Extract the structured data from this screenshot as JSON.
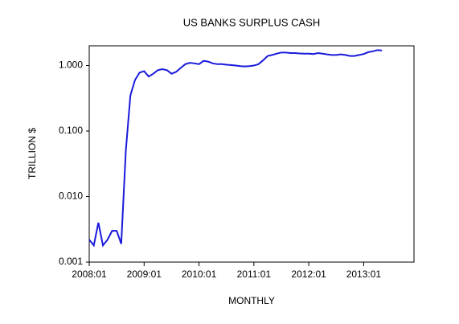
{
  "chart_data": {
    "type": "line",
    "title": "US BANKS SURPLUS CASH",
    "x_label": "MONTHLY",
    "y_label": "TRILLION $",
    "log_scale": true,
    "x": [
      "2008:01",
      "2008:02",
      "2008:03",
      "2008:04",
      "2008:05",
      "2008:06",
      "2008:07",
      "2008:08",
      "2008:09",
      "2008:10",
      "2008:11",
      "2008:12",
      "2009:01",
      "2009:02",
      "2009:03",
      "2009:04",
      "2009:05",
      "2009:06",
      "2009:07",
      "2009:08",
      "2009:09",
      "2009:10",
      "2009:11",
      "2009:12",
      "2010:01",
      "2010:02",
      "2010:03",
      "2010:04",
      "2010:05",
      "2010:06",
      "2010:07",
      "2010:08",
      "2010:09",
      "2010:10",
      "2010:11",
      "2010:12",
      "2011:01",
      "2011:02",
      "2011:03",
      "2011:04",
      "2011:05",
      "2011:06",
      "2011:07",
      "2011:08",
      "2011:09",
      "2011:10",
      "2011:11",
      "2011:12",
      "2012:01",
      "2012:02",
      "2012:03",
      "2012:04",
      "2012:05",
      "2012:06",
      "2012:07",
      "2012:08",
      "2012:09",
      "2012:10",
      "2012:11",
      "2012:12",
      "2013:01",
      "2013:02",
      "2013:03",
      "2013:04",
      "2013:05"
    ],
    "series": [
      {
        "name": "US banks surplus cash",
        "color": "#1a1adc",
        "values": [
          0.0022,
          0.0018,
          0.004,
          0.0018,
          0.0022,
          0.003,
          0.003,
          0.0019,
          0.05,
          0.35,
          0.6,
          0.78,
          0.82,
          0.68,
          0.75,
          0.85,
          0.88,
          0.85,
          0.75,
          0.8,
          0.92,
          1.05,
          1.1,
          1.08,
          1.05,
          1.18,
          1.15,
          1.08,
          1.05,
          1.05,
          1.03,
          1.02,
          1.0,
          0.98,
          0.97,
          0.98,
          1.0,
          1.05,
          1.2,
          1.4,
          1.45,
          1.52,
          1.58,
          1.58,
          1.55,
          1.55,
          1.53,
          1.52,
          1.52,
          1.5,
          1.55,
          1.52,
          1.48,
          1.45,
          1.45,
          1.48,
          1.45,
          1.4,
          1.4,
          1.45,
          1.5,
          1.6,
          1.65,
          1.72,
          1.7
        ]
      }
    ],
    "xlim": [
      "2008:01",
      "2013:12"
    ],
    "xticks": [
      "2008:01",
      "2009:01",
      "2010:01",
      "2011:01",
      "2012:01",
      "2013:01"
    ],
    "ylim": [
      0.001,
      2
    ],
    "yticks": [
      0.001,
      {
        "value": 0.01,
        "label": "0.010"
      },
      {
        "value": 0.1,
        "label": "0.100"
      },
      {
        "value": 1,
        "label": "1.000"
      }
    ]
  }
}
